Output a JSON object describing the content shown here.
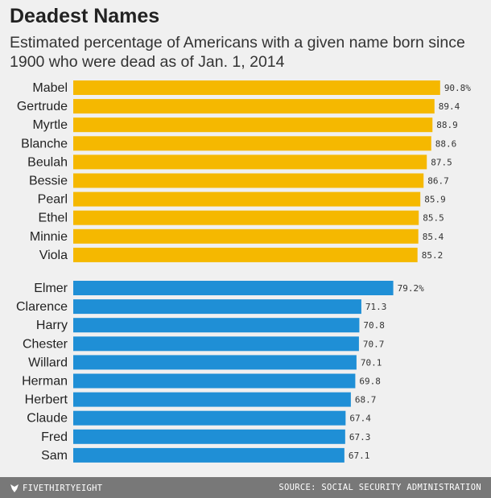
{
  "header": {
    "title": "Deadest Names",
    "subtitle": "Estimated percentage of Americans with a given name born since 1900 who were dead as of Jan. 1, 2014"
  },
  "footer": {
    "brand": "FIVETHIRTYEIGHT",
    "source": "SOURCE: SOCIAL SECURITY ADMINISTRATION"
  },
  "colors": {
    "female": "#f5b800",
    "male": "#1f8fd6",
    "background": "#f0f0f0",
    "footer": "#787878"
  },
  "chart_data": {
    "type": "bar",
    "orientation": "horizontal",
    "title": "Deadest Names",
    "subtitle": "Estimated percentage of Americans with a given name born since 1900 who were dead as of Jan. 1, 2014",
    "xlabel": "",
    "ylabel": "",
    "xlim": [
      0,
      100
    ],
    "grid": false,
    "series": [
      {
        "name": "female",
        "color": "#f5b800",
        "categories": [
          "Mabel",
          "Gertrude",
          "Myrtle",
          "Blanche",
          "Beulah",
          "Bessie",
          "Pearl",
          "Ethel",
          "Minnie",
          "Viola"
        ],
        "values": [
          90.8,
          89.4,
          88.9,
          88.6,
          87.5,
          86.7,
          85.9,
          85.5,
          85.4,
          85.2
        ],
        "value_labels": [
          "90.8%",
          "89.4",
          "88.9",
          "88.6",
          "87.5",
          "86.7",
          "85.9",
          "85.5",
          "85.4",
          "85.2"
        ]
      },
      {
        "name": "male",
        "color": "#1f8fd6",
        "categories": [
          "Elmer",
          "Clarence",
          "Harry",
          "Chester",
          "Willard",
          "Herman",
          "Herbert",
          "Claude",
          "Fred",
          "Sam"
        ],
        "values": [
          79.2,
          71.3,
          70.8,
          70.7,
          70.1,
          69.8,
          68.7,
          67.4,
          67.3,
          67.1
        ],
        "value_labels": [
          "79.2%",
          "71.3",
          "70.8",
          "70.7",
          "70.1",
          "69.8",
          "68.7",
          "67.4",
          "67.3",
          "67.1"
        ]
      }
    ]
  }
}
